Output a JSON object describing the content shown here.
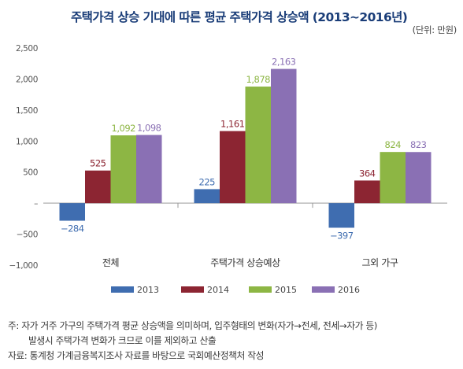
{
  "title": "주택가격 상승 기대에 따른 평균 주택가격 상승액 (2013~2016년)",
  "unit_label": "(단위: 만원)",
  "chart_data": {
    "type": "bar",
    "title": "주택가격 상승 기대에 따른 평균 주택가격 상승액 (2013~2016년)",
    "unit": "만원",
    "categories": [
      "전체",
      "주택가격 상승예상",
      "그외 가구"
    ],
    "series": [
      {
        "name": "2013",
        "color": "#3f6db0",
        "values": [
          -284,
          225,
          -397
        ],
        "labels": [
          "−284",
          "225",
          "−397"
        ]
      },
      {
        "name": "2014",
        "color": "#8c2532",
        "values": [
          525,
          1161,
          364
        ],
        "labels": [
          "525",
          "1,161",
          "364"
        ]
      },
      {
        "name": "2015",
        "color": "#8db644",
        "values": [
          1092,
          1878,
          824
        ],
        "labels": [
          "1,092",
          "1,878",
          "824"
        ]
      },
      {
        "name": "2016",
        "color": "#8a70b4",
        "values": [
          1098,
          2163,
          823
        ],
        "labels": [
          "1,098",
          "2,163",
          "823"
        ]
      }
    ],
    "ylim": [
      -1000,
      2500
    ],
    "yticks": [
      2500,
      2000,
      1500,
      1000,
      500,
      0,
      -500,
      -1000
    ],
    "ytick_labels": [
      "2,500",
      "2,000",
      "1,500",
      "1,000",
      "500",
      "–",
      "−500",
      "−1,000"
    ],
    "grid": false,
    "legend_position": "bottom"
  },
  "notes": [
    "주: 자가 거주 가구의 주택가격 평균 상승액을 의미하며, 입주형태의 변화(자가→전세, 전세→자가 등)",
    "발생시 주택가격 변화가 크므로 이를 제외하고 산출",
    "자료: 통계청 가계금융복지조사 자료를 바탕으로 국회예산정책처 작성"
  ]
}
